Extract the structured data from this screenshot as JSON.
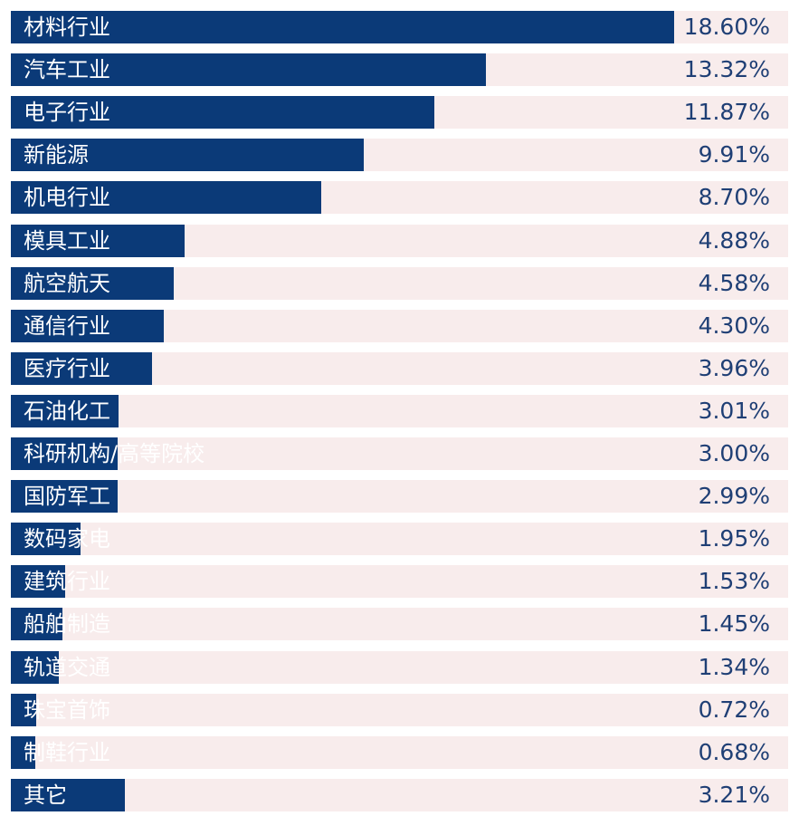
{
  "chart_data": {
    "type": "bar",
    "orientation": "horizontal",
    "categories": [
      "材料行业",
      "汽车工业",
      "电子行业",
      "新能源",
      "机电行业",
      "模具工业",
      "航空航天",
      "通信行业",
      "医疗行业",
      "石油化工",
      "科研机构/高等院校",
      "国防军工",
      "数码家电",
      "建筑行业",
      "船舶制造",
      "轨道交通",
      "珠宝首饰",
      "制鞋行业",
      "其它"
    ],
    "values": [
      18.6,
      13.32,
      11.87,
      9.91,
      8.7,
      4.88,
      4.58,
      4.3,
      3.96,
      3.01,
      3.0,
      2.99,
      1.95,
      1.53,
      1.45,
      1.34,
      0.72,
      0.68,
      3.21
    ],
    "labels": [
      "18.60%",
      "13.32%",
      "11.87%",
      "9.91%",
      "8.70%",
      "4.88%",
      "4.58%",
      "4.30%",
      "3.96%",
      "3.01%",
      "3.00%",
      "2.99%",
      "1.95%",
      "1.53%",
      "1.45%",
      "1.34%",
      "0.72%",
      "0.68%",
      "3.21%"
    ],
    "unit": "%",
    "xlim": [
      0,
      21.8
    ],
    "grid": false,
    "legend": "none",
    "colors": {
      "bar": "#0b3a78",
      "track": "#f8ecec",
      "label_text": "#ffffff",
      "value_text": "#1f3f75"
    }
  }
}
